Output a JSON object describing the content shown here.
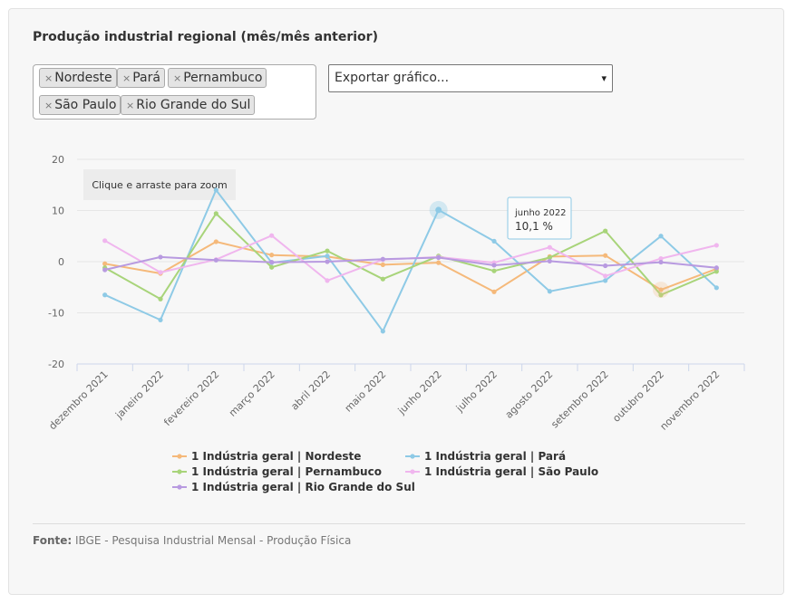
{
  "title": "Produção industrial regional (mês/mês anterior)",
  "filters": {
    "remove_glyph": "×",
    "tags": [
      "Nordeste",
      "Pará",
      "Pernambuco",
      "São Paulo",
      "Rio Grande do Sul"
    ]
  },
  "export": {
    "label": "Exportar gráfico...",
    "caret": "▾"
  },
  "zoom_hint": "Clique e arraste para zoom",
  "tooltip": {
    "date": "junho 2022",
    "value": "10,1 %"
  },
  "source": {
    "label": "Fonte:",
    "text": "IBGE - Pesquisa Industrial Mensal - Produção Física"
  },
  "chart_data": {
    "type": "line",
    "x": [
      "dezembro 2021",
      "janeiro 2022",
      "fevereiro 2022",
      "março 2022",
      "abril 2022",
      "maio 2022",
      "junho 2022",
      "julho 2022",
      "agosto 2022",
      "setembro 2022",
      "outubro 2022",
      "novembro 2022"
    ],
    "ylim": [
      -20,
      20
    ],
    "yticks": [
      20,
      10,
      0,
      -10,
      -20
    ],
    "grid": true,
    "legend_position": "bottom",
    "series": [
      {
        "name": "1 Indústria geral | Nordeste",
        "color": "#f5b97a",
        "values": [
          -0.4,
          -2.3,
          3.9,
          1.3,
          1.0,
          -0.6,
          -0.2,
          -5.9,
          1.0,
          1.2,
          -5.5,
          -1.4
        ]
      },
      {
        "name": "1 Indústria geral | Pará",
        "color": "#8ecae6",
        "values": [
          -6.5,
          -11.4,
          14.0,
          -0.2,
          1.1,
          -13.6,
          10.1,
          4.0,
          -5.8,
          -3.7,
          5.0,
          -5.1
        ]
      },
      {
        "name": "1 Indústria geral | Pernambuco",
        "color": "#a8d47a",
        "values": [
          -1.2,
          -7.3,
          9.4,
          -1.1,
          2.1,
          -3.4,
          1.1,
          -1.8,
          0.8,
          6.0,
          -6.5,
          -1.9
        ]
      },
      {
        "name": "1 Indústria geral | São Paulo",
        "color": "#f0b6ee",
        "values": [
          4.1,
          -2.1,
          0.4,
          5.1,
          -3.7,
          0.4,
          0.9,
          -0.2,
          2.8,
          -2.8,
          0.6,
          3.2
        ]
      },
      {
        "name": "1 Indústria geral | Rio Grande do Sul",
        "color": "#b89ae0",
        "values": [
          -1.6,
          0.9,
          0.3,
          -0.1,
          0.0,
          0.5,
          0.8,
          -0.7,
          0.1,
          -0.8,
          -0.1,
          -1.2
        ]
      }
    ]
  }
}
